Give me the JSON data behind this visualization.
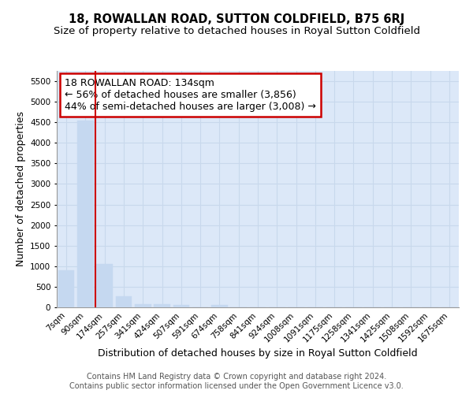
{
  "title": "18, ROWALLAN ROAD, SUTTON COLDFIELD, B75 6RJ",
  "subtitle": "Size of property relative to detached houses in Royal Sutton Coldfield",
  "xlabel": "Distribution of detached houses by size in Royal Sutton Coldfield",
  "ylabel": "Number of detached properties",
  "categories": [
    "7sqm",
    "90sqm",
    "174sqm",
    "257sqm",
    "341sqm",
    "424sqm",
    "507sqm",
    "591sqm",
    "674sqm",
    "758sqm",
    "841sqm",
    "924sqm",
    "1008sqm",
    "1091sqm",
    "1175sqm",
    "1258sqm",
    "1341sqm",
    "1425sqm",
    "1508sqm",
    "1592sqm",
    "1675sqm"
  ],
  "values": [
    900,
    4550,
    1060,
    270,
    80,
    70,
    55,
    0,
    55,
    0,
    0,
    0,
    0,
    0,
    0,
    0,
    0,
    0,
    0,
    0,
    0
  ],
  "bar_color": "#c5d8f0",
  "bar_edge_color": "#c5d8f0",
  "vline_color": "#cc0000",
  "annotation_text": "18 ROWALLAN ROAD: 134sqm\n← 56% of detached houses are smaller (3,856)\n44% of semi-detached houses are larger (3,008) →",
  "annotation_box_color": "#ffffff",
  "annotation_box_edge_color": "#cc0000",
  "ylim": [
    0,
    5750
  ],
  "yticks": [
    0,
    500,
    1000,
    1500,
    2000,
    2500,
    3000,
    3500,
    4000,
    4500,
    5000,
    5500
  ],
  "grid_color": "#c8d8ec",
  "background_color": "#dce8f8",
  "footer_line1": "Contains HM Land Registry data © Crown copyright and database right 2024.",
  "footer_line2": "Contains public sector information licensed under the Open Government Licence v3.0.",
  "title_fontsize": 10.5,
  "subtitle_fontsize": 9.5,
  "xlabel_fontsize": 9,
  "ylabel_fontsize": 9,
  "tick_fontsize": 7.5,
  "annotation_fontsize": 9,
  "footer_fontsize": 7
}
